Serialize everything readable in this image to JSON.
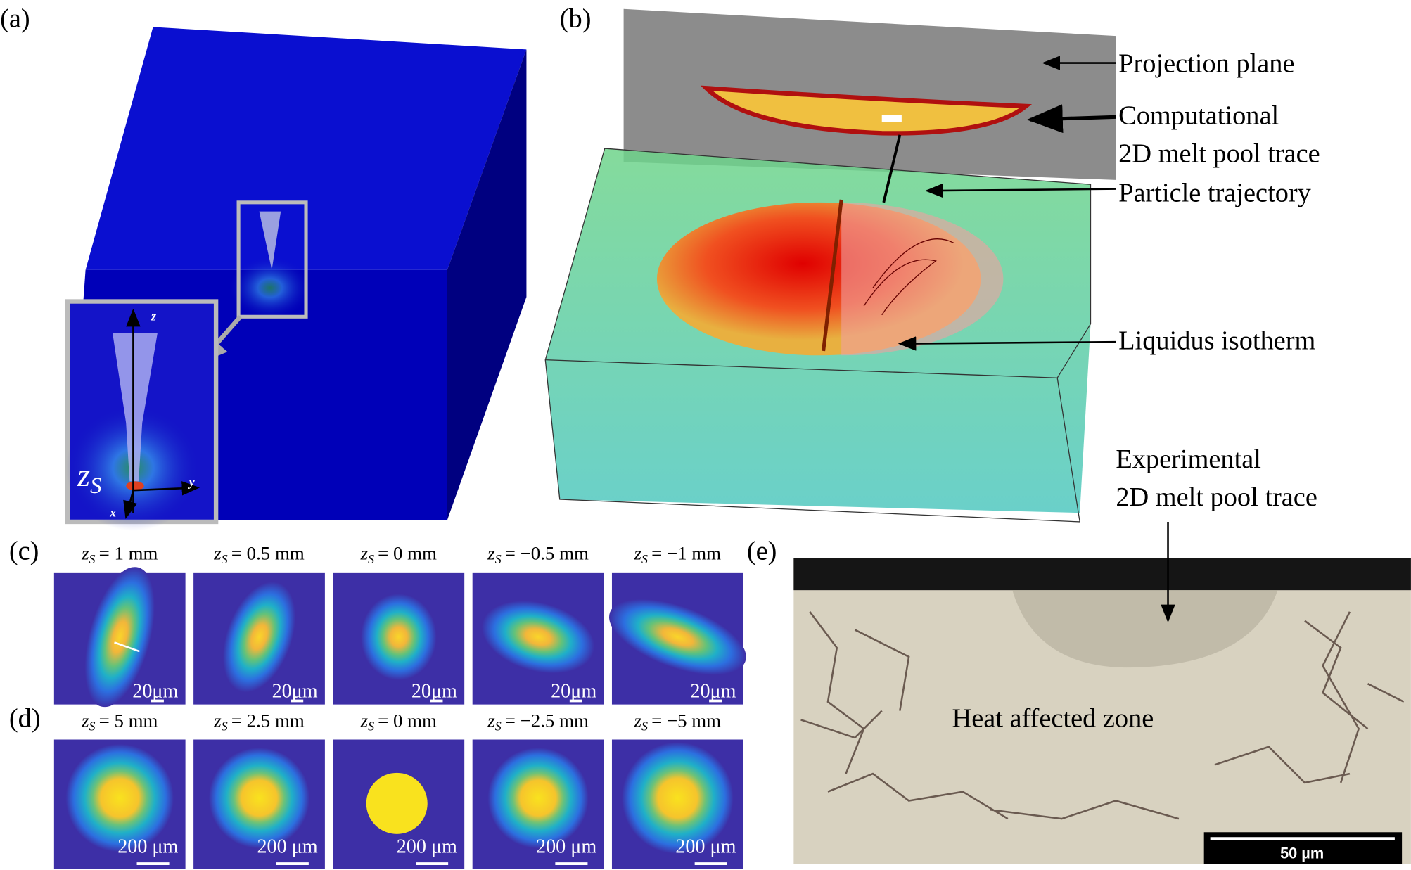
{
  "panels": {
    "a": {
      "label": "(a)",
      "inset": {
        "axis_z": "z",
        "axis_y": "y",
        "axis_x": "x",
        "beam_var": "z",
        "beam_sub": "S"
      }
    },
    "b": {
      "label": "(b)",
      "annotations": [
        "Projection plane",
        "Computational",
        "2D melt pool trace",
        "Particle trajectory",
        "Liquidus isotherm"
      ]
    },
    "c": {
      "label": "(c)",
      "images": [
        {
          "var": "z",
          "sub": "S",
          "rest": "= 1 mm",
          "scale": "20μm"
        },
        {
          "var": "z",
          "sub": "S",
          "rest": "= 0.5 mm",
          "scale": "20μm"
        },
        {
          "var": "z",
          "sub": "S",
          "rest": "= 0 mm",
          "scale": "20μm"
        },
        {
          "var": "z",
          "sub": "S",
          "rest": "= −0.5 mm",
          "scale": "20μm"
        },
        {
          "var": "z",
          "sub": "S",
          "rest": "= −1 mm",
          "scale": "20μm"
        }
      ]
    },
    "d": {
      "label": "(d)",
      "images": [
        {
          "var": "z",
          "sub": "S",
          "rest": "= 5 mm",
          "scale": "200 μm"
        },
        {
          "var": "z",
          "sub": "S",
          "rest": "= 2.5 mm",
          "scale": "200 μm"
        },
        {
          "var": "z",
          "sub": "S",
          "rest": "= 0 mm",
          "scale": "200 μm"
        },
        {
          "var": "z",
          "sub": "S",
          "rest": "= −2.5 mm",
          "scale": "200 μm"
        },
        {
          "var": "z",
          "sub": "S",
          "rest": "= −5 mm",
          "scale": "200 μm"
        }
      ]
    },
    "e": {
      "label": "(e)",
      "annotations": [
        "Experimental",
        "2D melt pool trace",
        "Heat affected zone"
      ],
      "scale_bar": "50 µm"
    }
  }
}
